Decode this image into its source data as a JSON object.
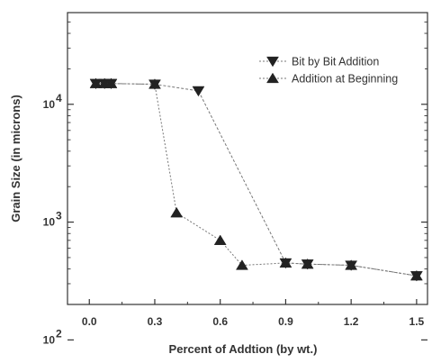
{
  "chart_data": {
    "type": "line",
    "title": "",
    "xlabel": "Percent of Addtion (by wt.)",
    "ylabel": "Grain Size (in microns)",
    "xlim": [
      -0.1,
      1.55
    ],
    "ylim": [
      200,
      60000
    ],
    "yscale": "log",
    "x_ticks": [
      0.0,
      0.3,
      0.6,
      0.9,
      1.2,
      1.5
    ],
    "x_tick_labels": [
      "0.0",
      "0.3",
      "0.6",
      "0.9",
      "1.2",
      "1.5"
    ],
    "y_ticks": [
      100,
      1000,
      10000
    ],
    "y_tick_labels": [
      {
        "base": "10",
        "exp": "2"
      },
      {
        "base": "10",
        "exp": "3"
      },
      {
        "base": "10",
        "exp": "4"
      }
    ],
    "grid": false,
    "legend_position": "top-right",
    "series": [
      {
        "name": "Bit by Bit Addition",
        "marker": "triangle-down",
        "x": [
          0.03,
          0.07,
          0.1,
          0.3,
          0.5,
          0.9,
          1.0,
          1.2,
          1.5
        ],
        "y": [
          15000,
          15000,
          15000,
          14800,
          13000,
          450,
          440,
          430,
          350
        ]
      },
      {
        "name": "Addition at Beginning",
        "marker": "triangle-up",
        "x": [
          0.03,
          0.07,
          0.1,
          0.3,
          0.4,
          0.6,
          0.7,
          0.9,
          1.0,
          1.2,
          1.5
        ],
        "y": [
          15000,
          15000,
          15000,
          14800,
          1200,
          700,
          430,
          450,
          440,
          430,
          350
        ]
      }
    ]
  },
  "colors": {
    "series_line": "#777777",
    "marker": "#222222",
    "axis": "#333333"
  }
}
